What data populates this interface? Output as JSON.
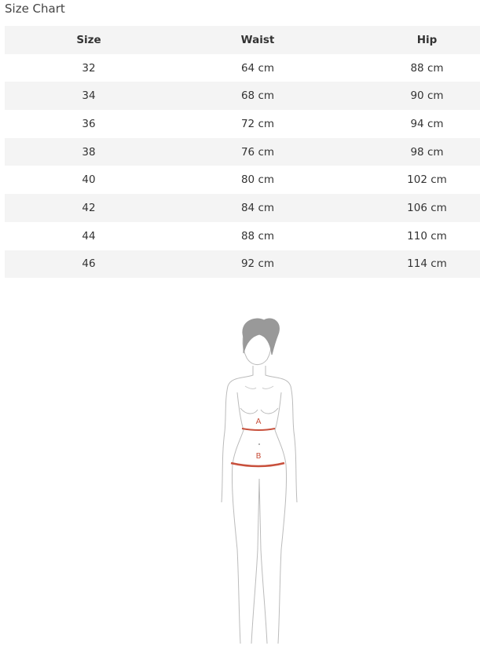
{
  "title": "Size Chart",
  "table": {
    "headers": [
      "Size",
      "Waist",
      "Hip"
    ],
    "rows": [
      [
        "32",
        "64 cm",
        "88 cm"
      ],
      [
        "34",
        "68 cm",
        "90 cm"
      ],
      [
        "36",
        "72 cm",
        "94 cm"
      ],
      [
        "38",
        "76 cm",
        "98 cm"
      ],
      [
        "40",
        "80 cm",
        "102 cm"
      ],
      [
        "42",
        "84 cm",
        "106 cm"
      ],
      [
        "44",
        "88 cm",
        "110 cm"
      ],
      [
        "46",
        "92 cm",
        "114 cm"
      ]
    ]
  },
  "figure": {
    "label_a": "A",
    "label_b": "B",
    "accent_color": "#c8503c"
  }
}
